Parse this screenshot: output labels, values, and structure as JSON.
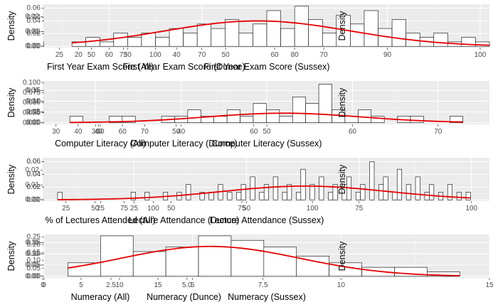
{
  "chart_data": [
    {
      "type": "histogram",
      "xlabel": "First Year Exam Score (All)",
      "ylabel": "Density",
      "xlim": [
        12,
        102
      ],
      "ylim": [
        -0.001,
        0.0285
      ],
      "xticks": [
        25,
        50,
        75,
        100
      ],
      "yticks": [
        0,
        0.01,
        0.02
      ],
      "bin_start": 13,
      "bin_width": 2.98,
      "densities": [
        0.003,
        0.006,
        0.003,
        0.003,
        0.008,
        0.015,
        0.008,
        0.011,
        0.011,
        0.014,
        0.013,
        0.011,
        0.015,
        0.019,
        0.008,
        0.016,
        0.015,
        0.017,
        0.011,
        0.013,
        0.018,
        0.019,
        0.013,
        0.022,
        0.011,
        0.025,
        0.022,
        0.014,
        0.023,
        0.008
      ],
      "normal_curve": {
        "mean": 58.5,
        "sd": 21
      }
    },
    {
      "type": "histogram",
      "xlabel": "First Year Exam Score (Dunce)",
      "ylabel": "Density",
      "xlim": [
        13,
        70
      ],
      "ylim": [
        -0.002,
        0.058
      ],
      "xticks": [
        20,
        30,
        40,
        50,
        60,
        70
      ],
      "yticks": [
        0,
        0.02,
        0.04
      ],
      "bin_start": 15,
      "bin_width": 1.8,
      "densities": [
        0.006,
        0.006,
        0.012,
        0.006,
        0.012,
        0.012,
        0.018,
        0.012,
        0.024,
        0.012,
        0.03,
        0.024,
        0.048,
        0.03,
        0.024,
        0.042,
        0.03,
        0.018,
        0.024,
        0.054,
        0.03,
        0.024,
        0.036,
        0.018,
        0.024,
        0.018,
        0.03,
        0.012,
        0.006,
        0.006
      ],
      "normal_curve": {
        "mean": 40.5,
        "sd": 12.3
      }
    },
    {
      "type": "histogram",
      "xlabel": "First Year Exam Score (Sussex)",
      "ylabel": "Density",
      "xlim": [
        53,
        101
      ],
      "ylim": [
        -0.002,
        0.066
      ],
      "xticks": [
        60,
        70,
        80,
        90,
        100
      ],
      "yticks": [
        0,
        0.02,
        0.04,
        0.06
      ],
      "bin_start": 56,
      "bin_width": 1.5,
      "densities": [
        0.007,
        0.014,
        0.007,
        0.021,
        0.014,
        0.021,
        0.014,
        0.028,
        0.021,
        0.035,
        0.028,
        0.042,
        0.021,
        0.035,
        0.056,
        0.028,
        0.063,
        0.042,
        0.021,
        0.049,
        0.035,
        0.056,
        0.028,
        0.042,
        0.021,
        0.014,
        0.021,
        0.007,
        0.014,
        0.007
      ],
      "normal_curve": {
        "mean": 76,
        "sd": 10
      }
    },
    {
      "type": "histogram",
      "xlabel": "Computer Literacy (All)",
      "ylabel": "Density",
      "xlim": [
        24,
        76
      ],
      "ylim": [
        -0.003,
        0.078
      ],
      "xticks": [
        30,
        40,
        50,
        60,
        70
      ],
      "yticks": [
        0,
        0.02,
        0.04,
        0.06
      ],
      "bin_start": 27,
      "bin_width": 1.53,
      "densities": [
        0.005,
        0.005,
        0.003,
        0.005,
        0.008,
        0.005,
        0.013,
        0.011,
        0.016,
        0.021,
        0.026,
        0.035,
        0.042,
        0.052,
        0.06,
        0.066,
        0.05,
        0.044,
        0.052,
        0.038,
        0.03,
        0.022,
        0.034,
        0.013,
        0.016,
        0.008,
        0.005,
        0.003,
        0.003,
        0.005
      ],
      "normal_curve": {
        "mean": 51,
        "sd": 8
      }
    },
    {
      "type": "histogram",
      "xlabel": "Computer Literacy (Dunce)",
      "ylabel": "Density",
      "xlim": [
        33,
        69
      ],
      "ylim": [
        -0.004,
        0.104
      ],
      "xticks": [
        40,
        50,
        60
      ],
      "yticks": [
        0,
        0.025,
        0.05,
        0.075,
        0.1
      ],
      "bin_start": 35,
      "bin_width": 1.07,
      "densities": [
        0.012,
        0.0,
        0.025,
        0.012,
        0.0,
        0.037,
        0.025,
        0.012,
        0.05,
        0.025,
        0.037,
        0.062,
        0.025,
        0.05,
        0.075,
        0.037,
        0.087,
        0.1,
        0.05,
        0.062,
        0.037,
        0.075,
        0.025,
        0.05,
        0.012,
        0.037,
        0.025,
        0.012,
        0.025,
        0.012
      ],
      "normal_curve": {
        "mean": 50,
        "sd": 7.8
      }
    },
    {
      "type": "histogram",
      "xlabel": "Computer Literacy (Sussex)",
      "ylabel": "Density",
      "xlim": [
        24,
        76
      ],
      "ylim": [
        -0.008,
        0.195
      ],
      "xticks": [
        30,
        40,
        50,
        60,
        70
      ],
      "yticks": [
        0,
        0.05,
        0.1,
        0.15
      ],
      "bin_start": 27,
      "bin_width": 1.53,
      "densities": [
        0.03,
        0.0,
        0.0,
        0.03,
        0.03,
        0.0,
        0.0,
        0.03,
        0.03,
        0.06,
        0.03,
        0.03,
        0.06,
        0.03,
        0.09,
        0.06,
        0.03,
        0.12,
        0.09,
        0.18,
        0.06,
        0.03,
        0.06,
        0.03,
        0.0,
        0.03,
        0.03,
        0.0,
        0.0,
        0.03
      ],
      "normal_curve": {
        "mean": 52,
        "sd": 9
      }
    },
    {
      "type": "histogram",
      "xlabel": "% of Lectures Attended (All)",
      "ylabel": "Density",
      "xlim": [
        5,
        104
      ],
      "ylim": [
        -0.001,
        0.0285
      ],
      "xticks": [
        25,
        50,
        75,
        100
      ],
      "yticks": [
        0,
        0.01,
        0.02
      ],
      "bin_start": 8,
      "bin_width": 3.11,
      "densities": [
        0.003,
        0.006,
        0.003,
        0.008,
        0.006,
        0.011,
        0.008,
        0.013,
        0.01,
        0.011,
        0.013,
        0.016,
        0.013,
        0.015,
        0.019,
        0.021,
        0.024,
        0.022,
        0.019,
        0.024,
        0.026,
        0.017,
        0.019,
        0.013,
        0.014,
        0.009,
        0.011,
        0.008,
        0.006,
        0.003
      ],
      "normal_curve": {
        "mean": 60,
        "sd": 21.5
      }
    },
    {
      "type": "histogram",
      "xlabel": "Lecture Attendance (Dunce)",
      "ylabel": "Density",
      "xlim": [
        5,
        104
      ],
      "ylim": [
        -0.002,
        0.066
      ],
      "xticks": [
        25,
        50,
        75,
        100
      ],
      "yticks": [
        0,
        0.02,
        0.04,
        0.06
      ],
      "bin_start": 8,
      "bin_width": 1.02,
      "densities": [
        0.012,
        0.0,
        0.012,
        0.0,
        0.024,
        0.0,
        0.012,
        0.0,
        0.012,
        0.036,
        0.0,
        0.012,
        0.0,
        0.024,
        0.0,
        0.012,
        0.0,
        0.0,
        0.012,
        0.0,
        0.024,
        0.012,
        0.0,
        0.012,
        0.0,
        0.036,
        0.0,
        0.012,
        0.0,
        0.024,
        0.0,
        0.012,
        0.0,
        0.048,
        0.0,
        0.012,
        0.0,
        0.024,
        0.0,
        0.012,
        0.0,
        0.012,
        0.0,
        0.036,
        0.012,
        0.0,
        0.024,
        0.0,
        0.012,
        0.0,
        0.036,
        0.0,
        0.012,
        0.024,
        0.0,
        0.048,
        0.0,
        0.012,
        0.0,
        0.024,
        0.0,
        0.012,
        0.0,
        0.036,
        0.0,
        0.012,
        0.0,
        0.012,
        0.024,
        0.0,
        0.036,
        0.0,
        0.012,
        0.0,
        0.06,
        0.0,
        0.012,
        0.024,
        0.0,
        0.012,
        0.0,
        0.024,
        0.0,
        0.012,
        0.0,
        0.036,
        0.0,
        0.012,
        0.0,
        0.012
      ],
      "normal_curve": {
        "mean": 55,
        "sd": 22
      }
    },
    {
      "type": "histogram",
      "xlabel": "Lecture Attendance (Sussex)",
      "ylabel": "Density",
      "xlim": [
        5,
        104
      ],
      "ylim": [
        -0.002,
        0.066
      ],
      "xticks": [
        25,
        50,
        75,
        100
      ],
      "yticks": [
        0,
        0.02,
        0.04,
        0.06
      ],
      "bin_start": 8,
      "bin_width": 1.02,
      "densities": [
        0.012,
        0.0,
        0.0,
        0.0,
        0.0,
        0.0,
        0.0,
        0.0,
        0.0,
        0.0,
        0.0,
        0.0,
        0.0,
        0.0,
        0.0,
        0.0,
        0.012,
        0.0,
        0.0,
        0.012,
        0.0,
        0.0,
        0.0,
        0.012,
        0.0,
        0.0,
        0.012,
        0.0,
        0.024,
        0.0,
        0.0,
        0.012,
        0.0,
        0.012,
        0.0,
        0.024,
        0.0,
        0.012,
        0.0,
        0.012,
        0.024,
        0.0,
        0.036,
        0.0,
        0.012,
        0.024,
        0.0,
        0.036,
        0.0,
        0.012,
        0.024,
        0.0,
        0.012,
        0.048,
        0.0,
        0.024,
        0.0,
        0.036,
        0.0,
        0.012,
        0.024,
        0.0,
        0.024,
        0.036,
        0.0,
        0.012,
        0.024,
        0.0,
        0.06,
        0.0,
        0.024,
        0.036,
        0.0,
        0.012,
        0.048,
        0.0,
        0.024,
        0.0,
        0.036,
        0.0,
        0.012,
        0.024,
        0.0,
        0.012,
        0.0,
        0.024,
        0.0,
        0.012,
        0.0,
        0.012
      ],
      "normal_curve": {
        "mean": 63,
        "sd": 18.5
      }
    },
    {
      "type": "histogram",
      "xlabel": "Numeracy (All)",
      "ylabel": "Density",
      "xlim": [
        0,
        15
      ],
      "ylim": [
        -0.007,
        0.186
      ],
      "xticks": [
        0,
        5,
        10,
        15
      ],
      "yticks": [
        0,
        0.05,
        0.1,
        0.15
      ],
      "bin_start": 0.5,
      "bin_width": 1,
      "densities": [
        0.05,
        0.17,
        0.16,
        0.11,
        0.16,
        0.1,
        0.08,
        0.04,
        0.06,
        0.02,
        0.02,
        0.005,
        0.0,
        0.01
      ],
      "normal_curve": {
        "mean": 4.9,
        "sd": 2.7
      }
    },
    {
      "type": "histogram",
      "xlabel": "Numeracy (Dunce)",
      "ylabel": "Density",
      "xlim": [
        0.3,
        9.5
      ],
      "ylim": [
        -0.01,
        0.265
      ],
      "xticks": [
        2.5,
        5.0,
        7.5
      ],
      "yticks": [
        0,
        0.05,
        0.1,
        0.15,
        0.2,
        0.25
      ],
      "bin_start": 0.75,
      "bin_width": 0.75,
      "densities": [
        0.05,
        0.0,
        0.15,
        0.15,
        0.15,
        0.25,
        0.15,
        0.1,
        0.1,
        0.05,
        0.05,
        0.02
      ],
      "normal_curve": {
        "mean": 4.1,
        "sd": 2.0
      }
    },
    {
      "type": "histogram",
      "xlabel": "Numeracy (Sussex)",
      "ylabel": "Density",
      "xlim": [
        0,
        15
      ],
      "ylim": [
        -0.007,
        0.186
      ],
      "xticks": [
        0,
        5,
        10,
        15
      ],
      "yticks": [
        0,
        0.05,
        0.1,
        0.15
      ],
      "bin_start": 0.8,
      "bin_width": 1.1,
      "densities": [
        0.06,
        0.18,
        0.11,
        0.13,
        0.18,
        0.16,
        0.13,
        0.09,
        0.06,
        0.04,
        0.04,
        0.02
      ],
      "normal_curve": {
        "mean": 5.6,
        "sd": 3.0
      }
    }
  ]
}
